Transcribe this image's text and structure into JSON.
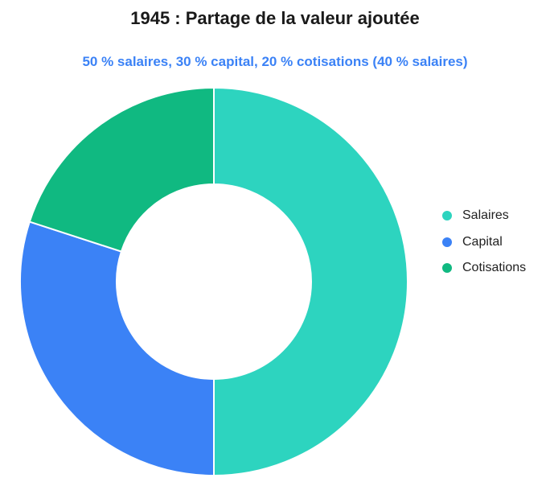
{
  "title": "1945 : Partage de la valeur ajoutée",
  "subtitle": "50 % salaires, 30 % capital, 20 % cotisations (40 % salaires)",
  "chart_data": {
    "type": "pie",
    "variant": "donut",
    "title": "1945 : Partage de la valeur ajoutée",
    "subtitle": "50 % salaires, 30 % capital, 20 % cotisations (40 % salaires)",
    "categories": [
      "Salaires",
      "Capital",
      "Cotisations"
    ],
    "values": [
      50,
      30,
      20
    ],
    "colors": [
      "#2dd4bf",
      "#3b82f6",
      "#10b981"
    ],
    "legend_position": "right"
  }
}
